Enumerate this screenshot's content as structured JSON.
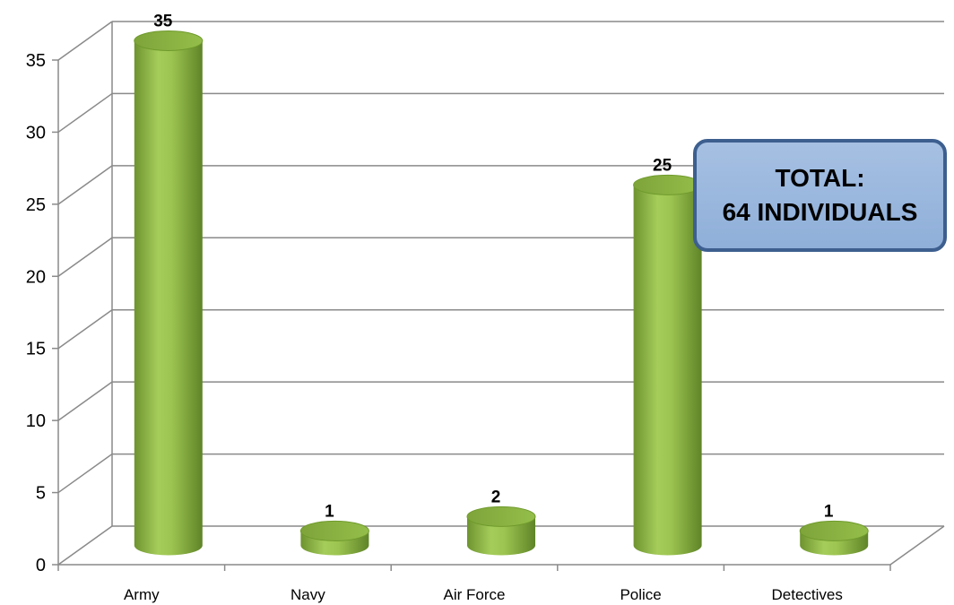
{
  "chart_data": {
    "type": "bar",
    "style": "3d-cylinder",
    "categories": [
      "Army",
      "Navy",
      "Air Force",
      "Police",
      "Detectives"
    ],
    "values": [
      35,
      1,
      2,
      25,
      1
    ],
    "ylim": [
      0,
      35
    ],
    "yticks": [
      0,
      5,
      10,
      15,
      20,
      25,
      30,
      35
    ],
    "grid": true,
    "bar_color": "#8bb342",
    "annotation": {
      "line1": "TOTAL:",
      "line2": "64 INDIVIDUALS"
    }
  }
}
